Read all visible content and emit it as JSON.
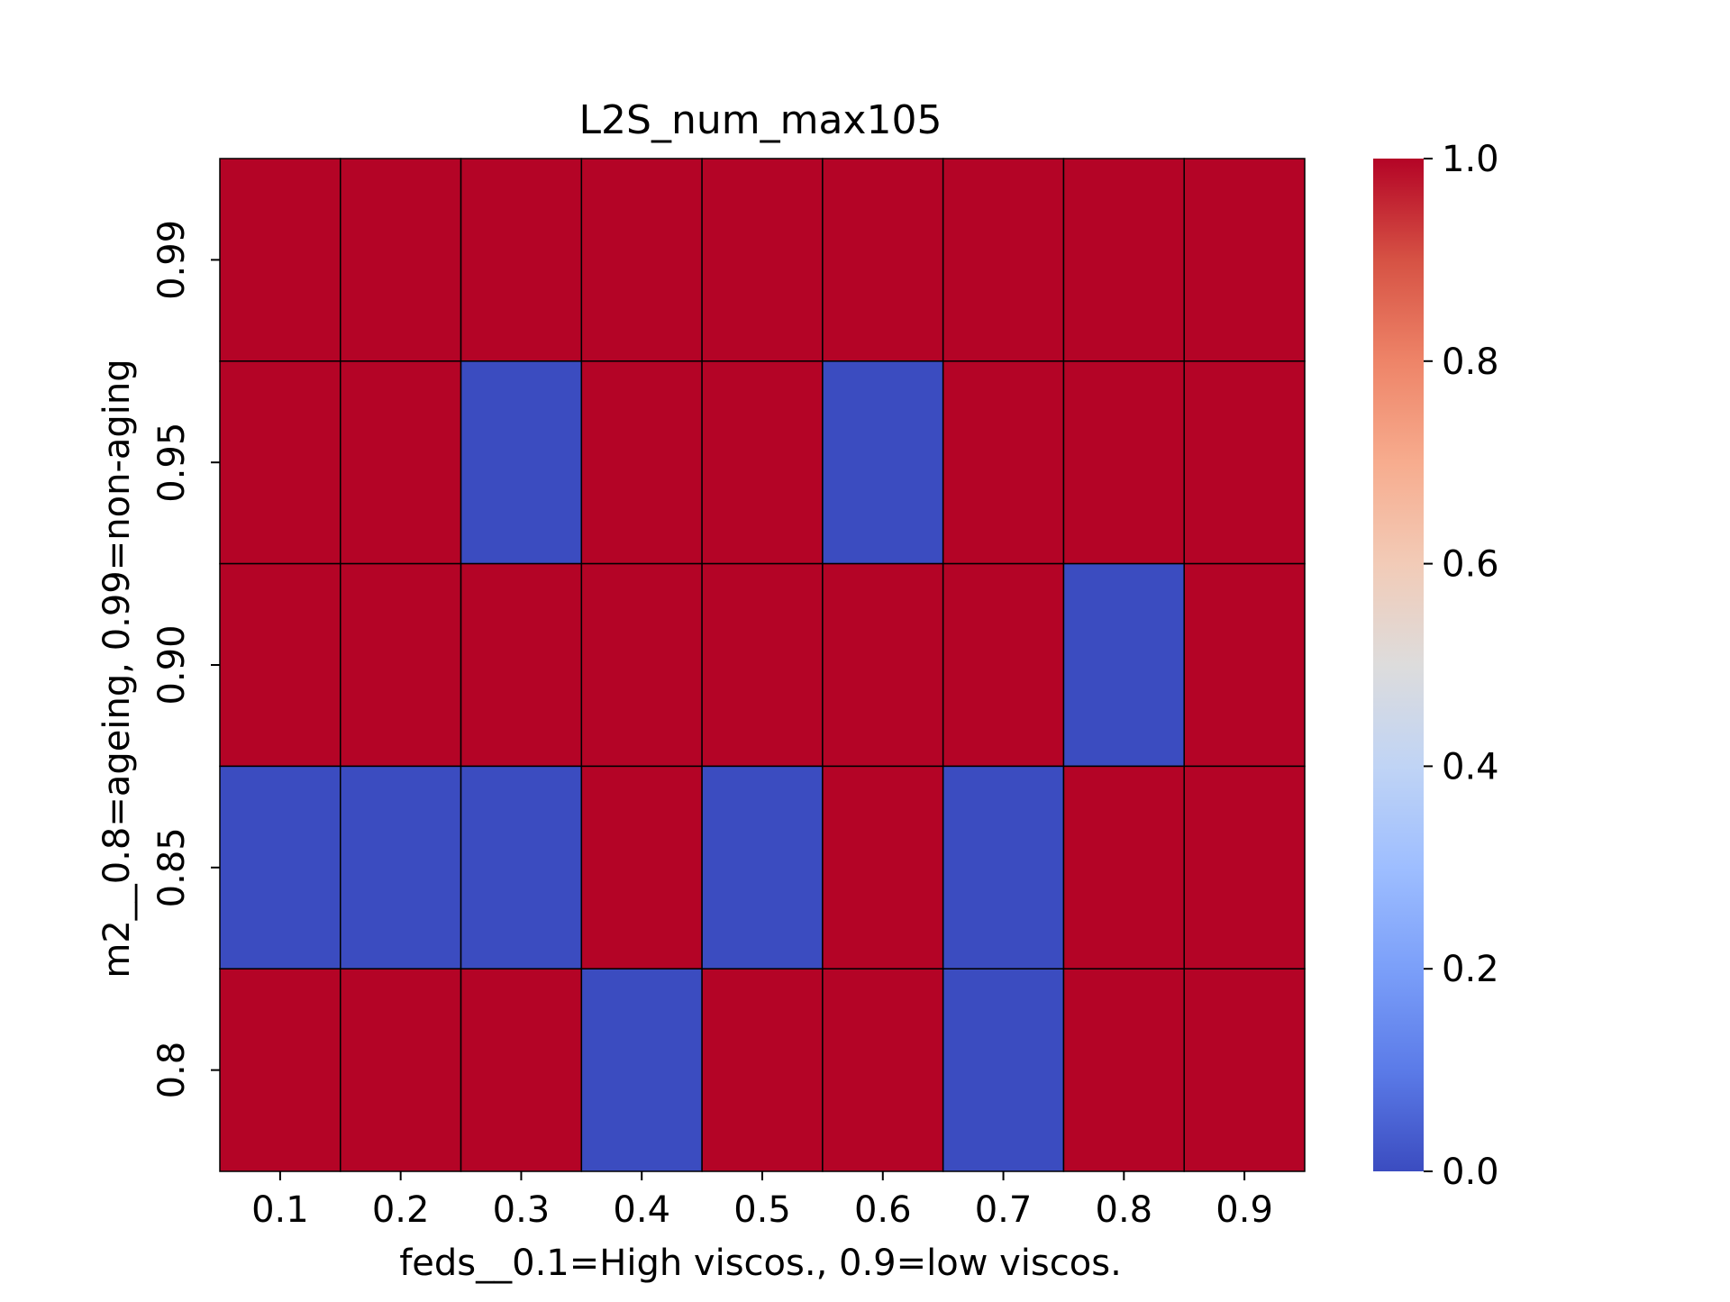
{
  "chart_data": {
    "type": "heatmap",
    "title": "L2S_num_max105",
    "xlabel": "feds__0.1=High viscos., 0.9=low viscos.",
    "ylabel": "m2__0.8=ageing, 0.99=non-aging",
    "x_categories": [
      "0.1",
      "0.2",
      "0.3",
      "0.4",
      "0.5",
      "0.6",
      "0.7",
      "0.8",
      "0.9"
    ],
    "y_categories": [
      "0.99",
      "0.95",
      "0.90",
      "0.85",
      "0.8"
    ],
    "values": [
      [
        1,
        1,
        1,
        1,
        1,
        1,
        1,
        1,
        1
      ],
      [
        1,
        1,
        0,
        1,
        1,
        0,
        1,
        1,
        1
      ],
      [
        1,
        1,
        1,
        1,
        1,
        1,
        1,
        0,
        1
      ],
      [
        0,
        0,
        0,
        1,
        0,
        1,
        0,
        1,
        1
      ],
      [
        1,
        1,
        1,
        0,
        1,
        1,
        0,
        1,
        1
      ]
    ],
    "colormap": "coolwarm",
    "vmin": 0,
    "vmax": 1,
    "colorbar_ticks": [
      "0.0",
      "0.2",
      "0.4",
      "0.6",
      "0.8",
      "1.0"
    ],
    "colors": {
      "low": "#3b4cc0",
      "high": "#b40426"
    },
    "grid": true,
    "colorbar_position": "right"
  }
}
